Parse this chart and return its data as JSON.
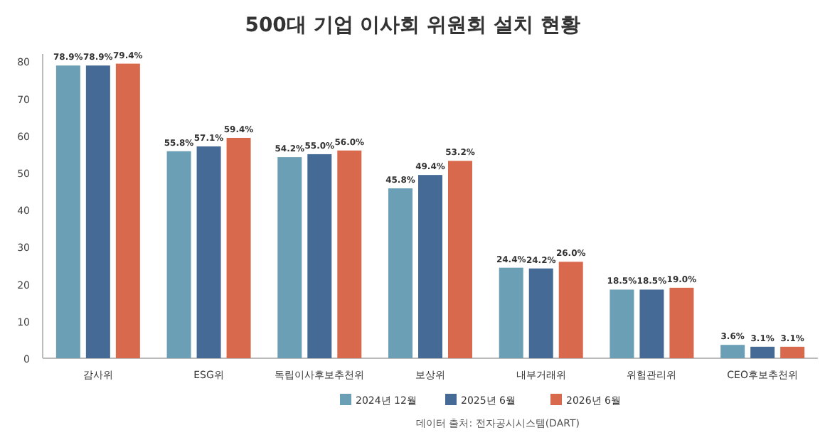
{
  "chart_data": {
    "type": "bar",
    "title": "500대 기업 이사회 위원회 설치 현황",
    "categories": [
      "감사위",
      "ESG위",
      "독립이사후보추천위",
      "보상위",
      "내부거래위",
      "위험관리위",
      "CEO후보추천위"
    ],
    "series": [
      {
        "name": "2024년 12월",
        "color": "#6a9fb5",
        "values": [
          78.9,
          55.8,
          54.2,
          45.8,
          24.4,
          18.5,
          3.6
        ],
        "value_labels": [
          "78.9%",
          "55.8%",
          "54.2%",
          "45.8%",
          "24.4%",
          "18.5%",
          "3.6%"
        ]
      },
      {
        "name": "2025년 6월",
        "color": "#466a96",
        "values": [
          78.9,
          57.1,
          55.0,
          49.4,
          24.2,
          18.5,
          3.1
        ],
        "value_labels": [
          "78.9%",
          "57.1%",
          "55.0%",
          "49.4%",
          "24.2%",
          "18.5%",
          "3.1%"
        ]
      },
      {
        "name": "2026년 6월",
        "color": "#d9694c",
        "values": [
          79.4,
          59.4,
          56.0,
          53.2,
          26.0,
          19.0,
          3.1
        ],
        "value_labels": [
          "79.4%",
          "59.4%",
          "56.0%",
          "53.2%",
          "26.0%",
          "19.0%",
          "3.1%"
        ]
      }
    ],
    "ylim": [
      0,
      82
    ],
    "yticks": [
      0,
      10,
      20,
      30,
      40,
      50,
      60,
      70,
      80
    ],
    "grid": false,
    "legend": "bottom",
    "annotations": [
      "데이터 출처: 전자공시시스템(DART)"
    ]
  }
}
